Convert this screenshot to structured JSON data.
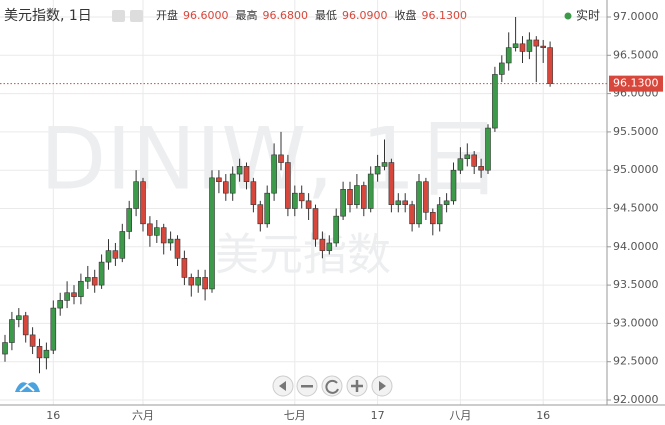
{
  "chart_data": {
    "type": "candlestick",
    "title": "美元指数, 1日",
    "stats": [
      {
        "label": "开盘",
        "value": "96.6000"
      },
      {
        "label": "最高",
        "value": "96.6800"
      },
      {
        "label": "最低",
        "value": "96.0900"
      },
      {
        "label": "收盘",
        "value": "96.1300"
      }
    ],
    "realtime": "实时",
    "watermark": "DINIW, 1日",
    "watermark_sub": "美元指数",
    "last_price": {
      "value": 96.13,
      "label": "96.1300"
    },
    "up_color": "#3d9a4a",
    "down_color": "#d8473b",
    "grid": true,
    "ylim": [
      92,
      97
    ],
    "yticks": [
      {
        "value": 92,
        "label": "92.0000"
      },
      {
        "value": 92.5,
        "label": "92.5000"
      },
      {
        "value": 93,
        "label": "93.0000"
      },
      {
        "value": 93.5,
        "label": "93.5000"
      },
      {
        "value": 94,
        "label": "94.0000"
      },
      {
        "value": 94.5,
        "label": "94.5000"
      },
      {
        "value": 95,
        "label": "95.0000"
      },
      {
        "value": 95.5,
        "label": "95.5000"
      },
      {
        "value": 96,
        "label": "96.0000"
      },
      {
        "value": 96.5,
        "label": "96.5000"
      },
      {
        "value": 97,
        "label": "97.0000"
      }
    ],
    "categories": [
      null,
      null,
      null,
      null,
      null,
      null,
      null,
      "16",
      null,
      null,
      null,
      null,
      null,
      null,
      null,
      null,
      null,
      null,
      null,
      null,
      "六月",
      null,
      null,
      null,
      null,
      null,
      null,
      null,
      null,
      null,
      null,
      null,
      null,
      null,
      null,
      null,
      null,
      null,
      null,
      null,
      null,
      null,
      "七月",
      null,
      null,
      null,
      null,
      null,
      null,
      null,
      null,
      null,
      null,
      null,
      "17",
      null,
      null,
      null,
      null,
      null,
      null,
      null,
      null,
      null,
      null,
      null,
      "八月",
      null,
      null,
      null,
      null,
      null,
      null,
      null,
      null,
      null,
      null,
      null,
      "16",
      null
    ],
    "open": [
      92.6,
      92.75,
      93.05,
      93.1,
      92.85,
      92.7,
      92.55,
      92.65,
      93.2,
      93.3,
      93.4,
      93.35,
      93.55,
      93.6,
      93.5,
      93.8,
      93.95,
      93.85,
      94.2,
      94.5,
      94.85,
      94.3,
      94.15,
      94.25,
      94.05,
      94.1,
      93.85,
      93.6,
      93.5,
      93.6,
      93.45,
      94.9,
      94.85,
      94.7,
      94.95,
      95.05,
      94.85,
      94.55,
      94.3,
      94.7,
      95.2,
      95.1,
      94.5,
      94.7,
      94.6,
      94.5,
      94.1,
      93.95,
      94.05,
      94.4,
      94.75,
      94.55,
      94.8,
      94.5,
      94.95,
      95.05,
      95.1,
      94.55,
      94.6,
      94.55,
      94.3,
      94.85,
      94.45,
      94.3,
      94.55,
      94.6,
      95.0,
      95.15,
      95.2,
      95.05,
      95.0,
      95.55,
      96.25,
      96.4,
      96.6,
      96.65,
      96.55,
      96.7,
      96.62,
      96.6
    ],
    "high": [
      92.85,
      93.15,
      93.2,
      93.15,
      92.95,
      92.8,
      92.75,
      93.3,
      93.4,
      93.55,
      93.5,
      93.65,
      93.75,
      93.7,
      93.9,
      94.1,
      94.05,
      94.3,
      94.6,
      95.0,
      94.9,
      94.4,
      94.35,
      94.3,
      94.2,
      94.15,
      93.95,
      93.65,
      93.7,
      93.7,
      95.0,
      95.0,
      94.95,
      95.05,
      95.15,
      95.1,
      94.9,
      94.6,
      94.8,
      95.35,
      95.5,
      95.2,
      94.8,
      94.8,
      94.7,
      94.55,
      94.2,
      94.15,
      94.5,
      94.85,
      94.85,
      94.95,
      94.85,
      95.05,
      95.2,
      95.4,
      95.15,
      94.7,
      94.7,
      94.6,
      94.95,
      94.9,
      94.5,
      94.65,
      94.7,
      95.1,
      95.3,
      95.35,
      95.25,
      95.15,
      95.6,
      96.35,
      96.5,
      96.8,
      97.0,
      96.75,
      96.8,
      96.75,
      96.7,
      96.68
    ],
    "low": [
      92.5,
      92.65,
      92.95,
      92.75,
      92.6,
      92.35,
      92.4,
      92.6,
      93.1,
      93.2,
      93.25,
      93.25,
      93.45,
      93.4,
      93.45,
      93.7,
      93.75,
      93.8,
      94.1,
      94.4,
      94.2,
      94.0,
      94.05,
      93.9,
      93.95,
      93.75,
      93.5,
      93.35,
      93.4,
      93.3,
      93.4,
      94.7,
      94.6,
      94.6,
      94.85,
      94.75,
      94.45,
      94.2,
      94.25,
      94.6,
      95.0,
      94.4,
      94.4,
      94.5,
      94.35,
      94.0,
      93.85,
      93.9,
      94.0,
      94.35,
      94.45,
      94.5,
      94.4,
      94.45,
      94.85,
      95.0,
      94.45,
      94.45,
      94.45,
      94.2,
      94.25,
      94.35,
      94.15,
      94.2,
      94.45,
      94.55,
      94.95,
      95.05,
      94.95,
      94.9,
      94.95,
      95.5,
      96.15,
      96.3,
      96.55,
      96.4,
      96.45,
      96.15,
      96.4,
      96.09
    ],
    "close": [
      92.75,
      93.05,
      93.1,
      92.85,
      92.7,
      92.55,
      92.65,
      93.2,
      93.3,
      93.4,
      93.35,
      93.55,
      93.6,
      93.5,
      93.8,
      93.95,
      93.85,
      94.2,
      94.5,
      94.85,
      94.3,
      94.15,
      94.25,
      94.05,
      94.1,
      93.85,
      93.6,
      93.5,
      93.6,
      93.45,
      94.9,
      94.85,
      94.7,
      94.95,
      95.05,
      94.85,
      94.55,
      94.3,
      94.7,
      95.2,
      95.1,
      94.5,
      94.7,
      94.6,
      94.5,
      94.1,
      93.95,
      94.05,
      94.4,
      94.75,
      94.55,
      94.8,
      94.5,
      94.95,
      95.05,
      95.1,
      94.55,
      94.6,
      94.55,
      94.3,
      94.85,
      94.45,
      94.3,
      94.55,
      94.6,
      95.0,
      95.15,
      95.2,
      95.05,
      95.0,
      95.55,
      96.25,
      96.4,
      96.6,
      96.65,
      96.55,
      96.7,
      96.62,
      96.6,
      96.13
    ]
  }
}
